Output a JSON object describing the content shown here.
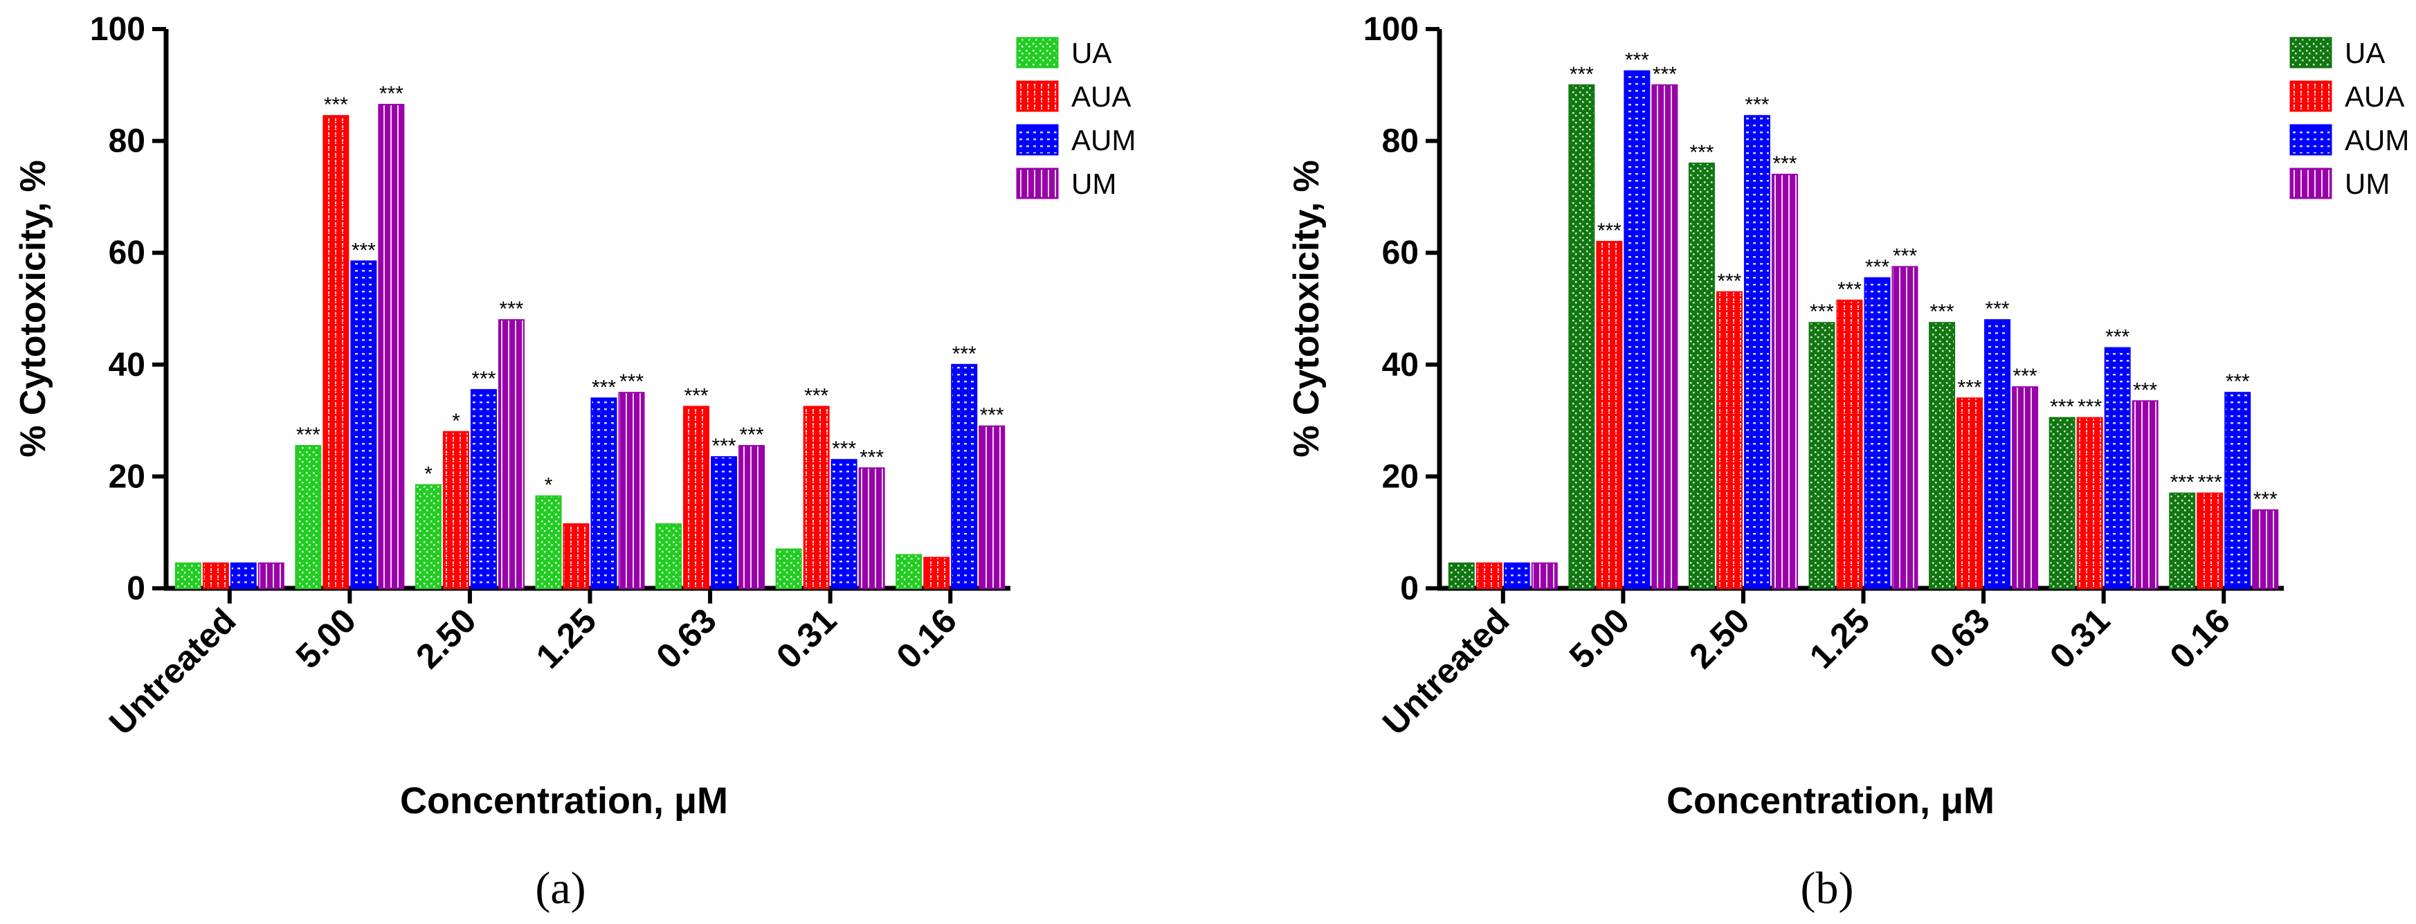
{
  "chart_data": [
    {
      "type": "bar",
      "panel_label": "(a)",
      "xlabel": "Concentration, μM",
      "ylabel": "% Cytotoxicity, %",
      "ylim": [
        0,
        100
      ],
      "yticks": [
        0,
        20,
        40,
        60,
        80,
        100
      ],
      "legend_position": "top-right",
      "grid": false,
      "categories": [
        "Untreated",
        "5.00",
        "2.50",
        "1.25",
        "0.63",
        "0.31",
        "0.16"
      ],
      "series": [
        {
          "name": "UA",
          "color": "#22cc22",
          "pattern": "dots",
          "values": [
            4.5,
            25.5,
            18.5,
            16.5,
            11.5,
            7,
            6
          ],
          "significance": [
            "",
            "***",
            "*",
            "*",
            "",
            "",
            ""
          ]
        },
        {
          "name": "AUA",
          "color": "#ff0000",
          "pattern": "dash",
          "values": [
            4.5,
            84.5,
            28,
            11.5,
            32.5,
            32.5,
            5.5
          ],
          "significance": [
            "",
            "***",
            "*",
            "",
            "***",
            "***",
            ""
          ]
        },
        {
          "name": "AUM",
          "color": "#0000ff",
          "pattern": "hlines",
          "values": [
            4.5,
            58.5,
            35.5,
            34,
            23.5,
            23,
            40
          ],
          "significance": [
            "",
            "***",
            "***",
            "***",
            "***",
            "***",
            "***"
          ]
        },
        {
          "name": "UM",
          "color": "#9900aa",
          "pattern": "vlines",
          "values": [
            4.5,
            86.5,
            48,
            35,
            25.5,
            21.5,
            29
          ],
          "significance": [
            "",
            "***",
            "***",
            "***",
            "***",
            "***",
            "***"
          ]
        }
      ]
    },
    {
      "type": "bar",
      "panel_label": "(b)",
      "xlabel": "Concentration, μM",
      "ylabel": "% Cytotoxicity, %",
      "ylim": [
        0,
        100
      ],
      "yticks": [
        0,
        20,
        40,
        60,
        80,
        100
      ],
      "legend_position": "top-right",
      "grid": false,
      "categories": [
        "Untreated",
        "5.00",
        "2.50",
        "1.25",
        "0.63",
        "0.31",
        "0.16"
      ],
      "series": [
        {
          "name": "UA",
          "color": "#117711",
          "pattern": "dots",
          "values": [
            4.5,
            90,
            76,
            47.5,
            47.5,
            30.5,
            17
          ],
          "significance": [
            "",
            "***",
            "***",
            "***",
            "***",
            "***",
            "***"
          ]
        },
        {
          "name": "AUA",
          "color": "#ff0000",
          "pattern": "dash",
          "values": [
            4.5,
            62,
            53,
            51.5,
            34,
            30.5,
            17
          ],
          "significance": [
            "",
            "***",
            "***",
            "***",
            "***",
            "***",
            "***"
          ]
        },
        {
          "name": "AUM",
          "color": "#0000ff",
          "pattern": "hlines",
          "values": [
            4.5,
            92.5,
            84.5,
            55.5,
            48,
            43,
            35
          ],
          "significance": [
            "",
            "***",
            "***",
            "***",
            "***",
            "***",
            "***"
          ]
        },
        {
          "name": "UM",
          "color": "#9900aa",
          "pattern": "vlines",
          "values": [
            4.5,
            90,
            74,
            57.5,
            36,
            33.5,
            14
          ],
          "significance": [
            "",
            "***",
            "***",
            "***",
            "***",
            "***",
            "***"
          ]
        }
      ]
    }
  ]
}
